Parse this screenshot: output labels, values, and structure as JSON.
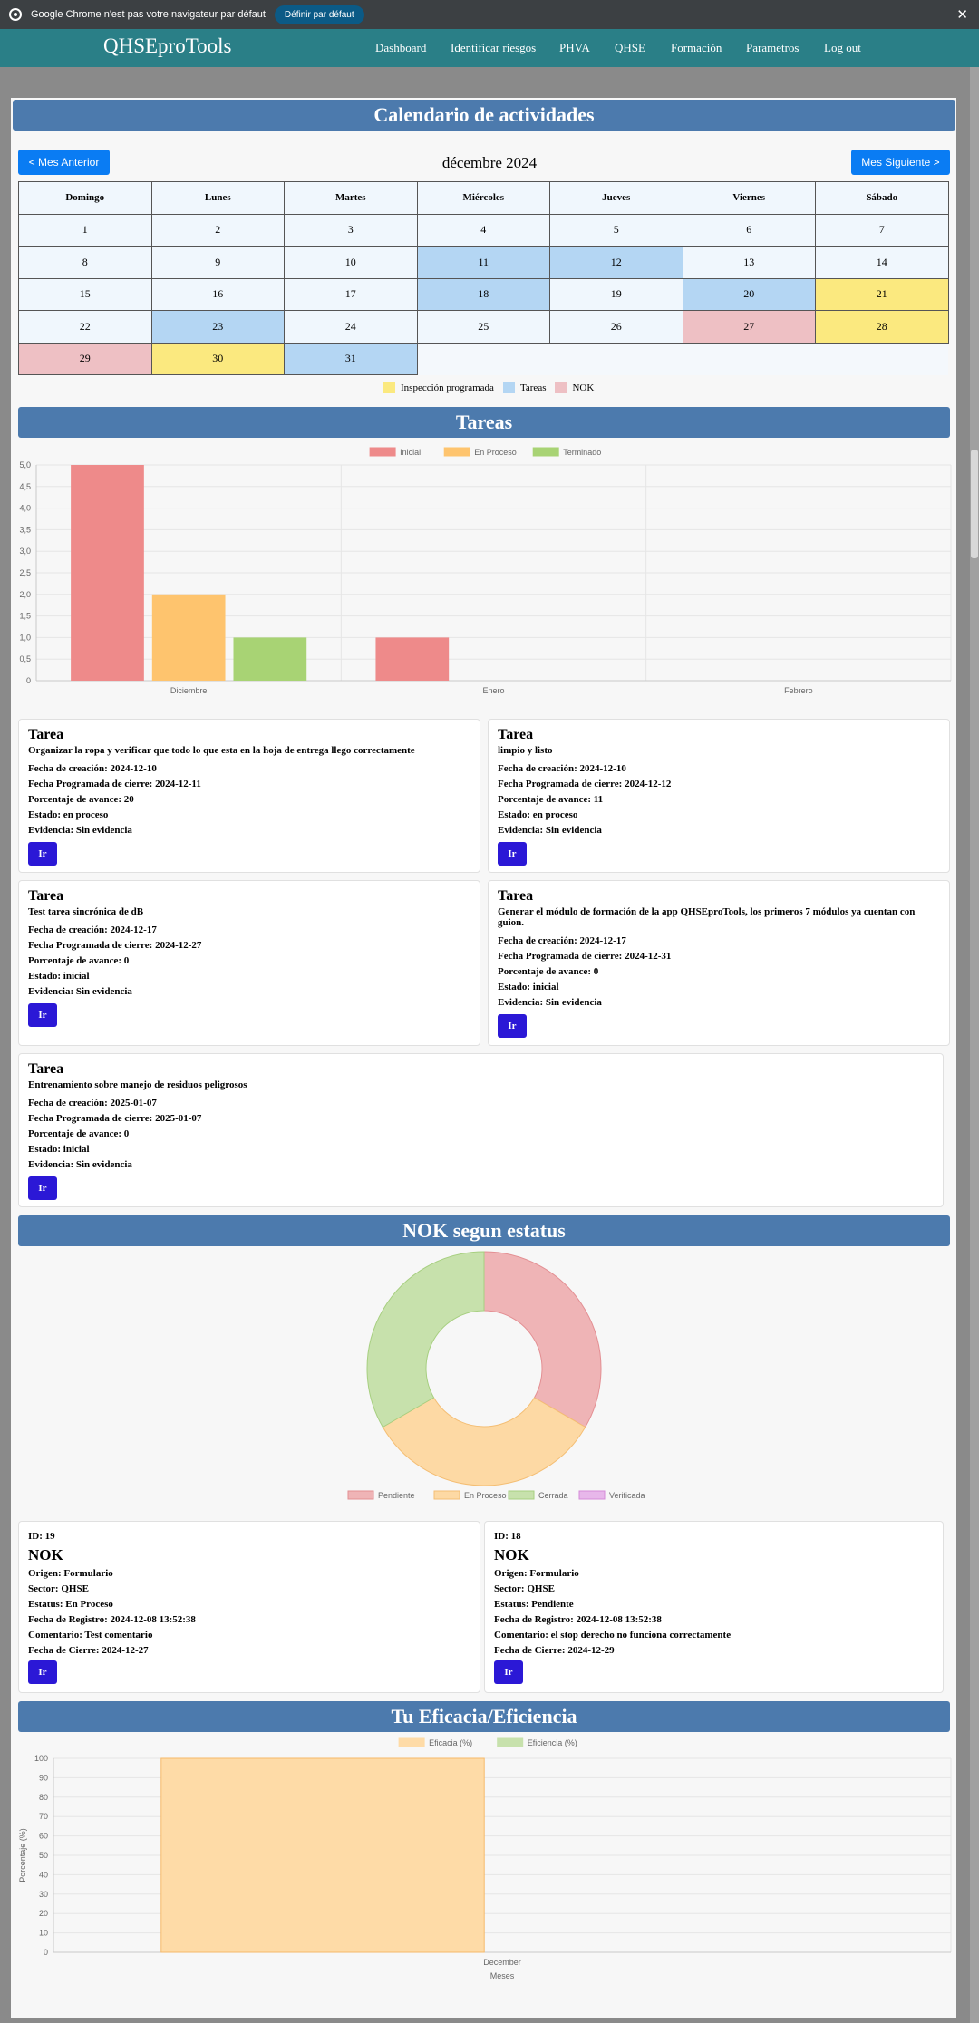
{
  "infobar": {
    "message": "Google Chrome n'est pas votre navigateur par défaut",
    "default_button": "Définir par défaut",
    "close": "✕"
  },
  "nav": {
    "brand": "QHSEproTools",
    "items": [
      "Dashboard",
      "Identificar riesgos",
      "PHVA",
      "QHSE",
      "Formación",
      "Parametros",
      "Log out"
    ]
  },
  "calendar": {
    "section_title": "Calendario de actividades",
    "prev_button": "< Mes Anterior",
    "next_button": "Mes Siguiente >",
    "month_label": "décembre 2024",
    "weekdays": [
      "Domingo",
      "Lunes",
      "Martes",
      "Miércoles",
      "Jueves",
      "Viernes",
      "Sábado"
    ],
    "weeks": [
      [
        {
          "d": "1",
          "t": ""
        },
        {
          "d": "2",
          "t": ""
        },
        {
          "d": "3",
          "t": ""
        },
        {
          "d": "4",
          "t": ""
        },
        {
          "d": "5",
          "t": ""
        },
        {
          "d": "6",
          "t": ""
        },
        {
          "d": "7",
          "t": ""
        }
      ],
      [
        {
          "d": "8",
          "t": ""
        },
        {
          "d": "9",
          "t": ""
        },
        {
          "d": "10",
          "t": ""
        },
        {
          "d": "11",
          "t": "task"
        },
        {
          "d": "12",
          "t": "task"
        },
        {
          "d": "13",
          "t": ""
        },
        {
          "d": "14",
          "t": ""
        }
      ],
      [
        {
          "d": "15",
          "t": ""
        },
        {
          "d": "16",
          "t": ""
        },
        {
          "d": "17",
          "t": ""
        },
        {
          "d": "18",
          "t": "task"
        },
        {
          "d": "19",
          "t": ""
        },
        {
          "d": "20",
          "t": "task"
        },
        {
          "d": "21",
          "t": "insp"
        }
      ],
      [
        {
          "d": "22",
          "t": ""
        },
        {
          "d": "23",
          "t": "task"
        },
        {
          "d": "24",
          "t": ""
        },
        {
          "d": "25",
          "t": ""
        },
        {
          "d": "26",
          "t": ""
        },
        {
          "d": "27",
          "t": "nok"
        },
        {
          "d": "28",
          "t": "insp"
        }
      ],
      [
        {
          "d": "29",
          "t": "nok"
        },
        {
          "d": "30",
          "t": "insp"
        },
        {
          "d": "31",
          "t": "task"
        }
      ]
    ],
    "legend": [
      {
        "label": "Inspección programada",
        "color": "#fbe97f"
      },
      {
        "label": "Tareas",
        "color": "#b4d6f3"
      },
      {
        "label": "NOK",
        "color": "#eec0c4"
      }
    ]
  },
  "tareas_section": {
    "title": "Tareas"
  },
  "tareas_chart": {
    "chart_data": {
      "type": "bar",
      "categories": [
        "Diciembre",
        "Enero",
        "Febrero"
      ],
      "series": [
        {
          "name": "Inicial",
          "color": "#ee8a8a",
          "values": [
            5,
            1,
            0
          ]
        },
        {
          "name": "En Proceso",
          "color": "#fec46e",
          "values": [
            2,
            0,
            0
          ]
        },
        {
          "name": "Terminado",
          "color": "#a8d374",
          "values": [
            1,
            0,
            0
          ]
        }
      ],
      "ylim": [
        0,
        5
      ],
      "yticks": [
        "0",
        "0,5",
        "1,0",
        "1,5",
        "2,0",
        "2,5",
        "3,0",
        "3,5",
        "4,0",
        "4,5",
        "5,0"
      ],
      "legend_position": "top",
      "grid": true
    }
  },
  "tasks": [
    {
      "title": "Tarea",
      "desc": "Organizar la ropa y verificar que todo lo que esta en la hoja de entrega llego correctamente",
      "created": "Fecha de creación: 2024-12-10",
      "due": "Fecha Programada de cierre: 2024-12-11",
      "progress": "Porcentaje de avance: 20",
      "status": "Estado: en proceso",
      "evidence": "Evidencia: Sin evidencia",
      "button": "Ir"
    },
    {
      "title": "Tarea",
      "desc": "limpio y listo",
      "created": "Fecha de creación: 2024-12-10",
      "due": "Fecha Programada de cierre: 2024-12-12",
      "progress": "Porcentaje de avance: 11",
      "status": "Estado: en proceso",
      "evidence": "Evidencia: Sin evidencia",
      "button": "Ir"
    },
    {
      "title": "Tarea",
      "desc": "Test tarea sincrónica de dB",
      "created": "Fecha de creación: 2024-12-17",
      "due": "Fecha Programada de cierre: 2024-12-27",
      "progress": "Porcentaje de avance: 0",
      "status": "Estado: inicial",
      "evidence": "Evidencia: Sin evidencia",
      "button": "Ir"
    },
    {
      "title": "Tarea",
      "desc": "Generar el módulo de formación de la app QHSEproTools, los primeros 7 módulos ya cuentan con guion.",
      "created": "Fecha de creación: 2024-12-17",
      "due": "Fecha Programada de cierre: 2024-12-31",
      "progress": "Porcentaje de avance: 0",
      "status": "Estado: inicial",
      "evidence": "Evidencia: Sin evidencia",
      "button": "Ir"
    },
    {
      "title": "Tarea",
      "desc": "Entrenamiento sobre manejo de residuos peligrosos",
      "created": "Fecha de creación: 2025-01-07",
      "due": "Fecha Programada de cierre: 2025-01-07",
      "progress": "Porcentaje de avance: 0",
      "status": "Estado: inicial",
      "evidence": "Evidencia: Sin evidencia",
      "button": "Ir"
    }
  ],
  "nok_section": {
    "title": "NOK segun estatus"
  },
  "nok_chart": {
    "chart_data": {
      "type": "pie",
      "labels": [
        "Pendiente",
        "En Proceso",
        "Cerrada",
        "Verificada"
      ],
      "values": [
        1,
        1,
        1,
        0
      ],
      "colors": [
        "#efb4b6",
        "#fdd9a4",
        "#c7e1ac",
        "#e7b7ea"
      ],
      "donut": true,
      "legend_position": "bottom"
    }
  },
  "noks": [
    {
      "id": "ID: 19",
      "title": "NOK",
      "origin": "Origen: Formulario",
      "sector": "Sector: QHSE",
      "status": "Estatus: En Proceso",
      "registered": "Fecha de Registro: 2024-12-08 13:52:38",
      "comment": "Comentario: Test comentario",
      "closed": "Fecha de Cierre: 2024-12-27",
      "button": "Ir"
    },
    {
      "id": "ID: 18",
      "title": "NOK",
      "origin": "Origen: Formulario",
      "sector": "Sector: QHSE",
      "status": "Estatus: Pendiente",
      "registered": "Fecha de Registro: 2024-12-08 13:52:38",
      "comment": "Comentario: el stop derecho no funciona correctamente",
      "closed": "Fecha de Cierre: 2024-12-29",
      "button": "Ir"
    }
  ],
  "eficacia_section": {
    "title": "Tu Eficacia/Eficiencia"
  },
  "eficacia_chart": {
    "chart_data": {
      "type": "bar",
      "categories": [
        "December"
      ],
      "series": [
        {
          "name": "Eficacia (%)",
          "color": "#fedba7",
          "values": [
            100
          ]
        },
        {
          "name": "Eficiencia (%)",
          "color": "#c7e1ac",
          "values": [
            0
          ]
        }
      ],
      "xlabel": "Meses",
      "ylabel": "Porcentaje (%)",
      "ylim": [
        0,
        100
      ],
      "yticks": [
        "0",
        "10",
        "20",
        "30",
        "40",
        "50",
        "60",
        "70",
        "80",
        "90",
        "100"
      ],
      "legend_position": "top",
      "grid": true
    }
  }
}
